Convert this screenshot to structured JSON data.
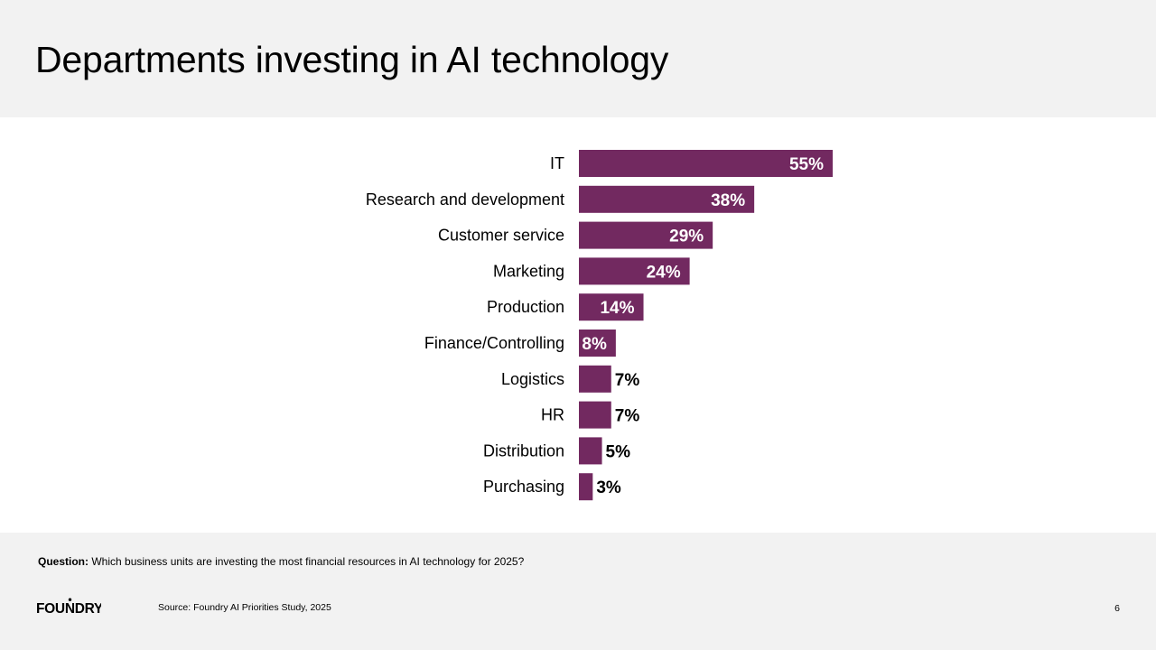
{
  "page": {
    "title": "Departments investing in AI technology",
    "question_label": "Question:",
    "question_text": "Which business units are investing the most financial resources in AI technology for 2025?",
    "source": "Source: Foundry AI Priorities Study, 2025",
    "page_number": "6",
    "logo_text": "FOUNDRY"
  },
  "colors": {
    "bar": "#722960",
    "label_inside": "#ffffff",
    "label_outside": "#000000",
    "panel": "#f2f2f2"
  },
  "chart_data": {
    "type": "bar",
    "orientation": "horizontal",
    "categories": [
      "IT",
      "Research and development",
      "Customer service",
      "Marketing",
      "Production",
      "Finance/Controlling",
      "Logistics",
      "HR",
      "Distribution",
      "Purchasing"
    ],
    "values": [
      55,
      38,
      29,
      24,
      14,
      8,
      7,
      7,
      5,
      3
    ],
    "value_labels": [
      "55%",
      "38%",
      "29%",
      "24%",
      "14%",
      "8%",
      "7%",
      "7%",
      "5%",
      "3%"
    ],
    "xlim": [
      0,
      55
    ],
    "grid": false,
    "legend": "none"
  }
}
